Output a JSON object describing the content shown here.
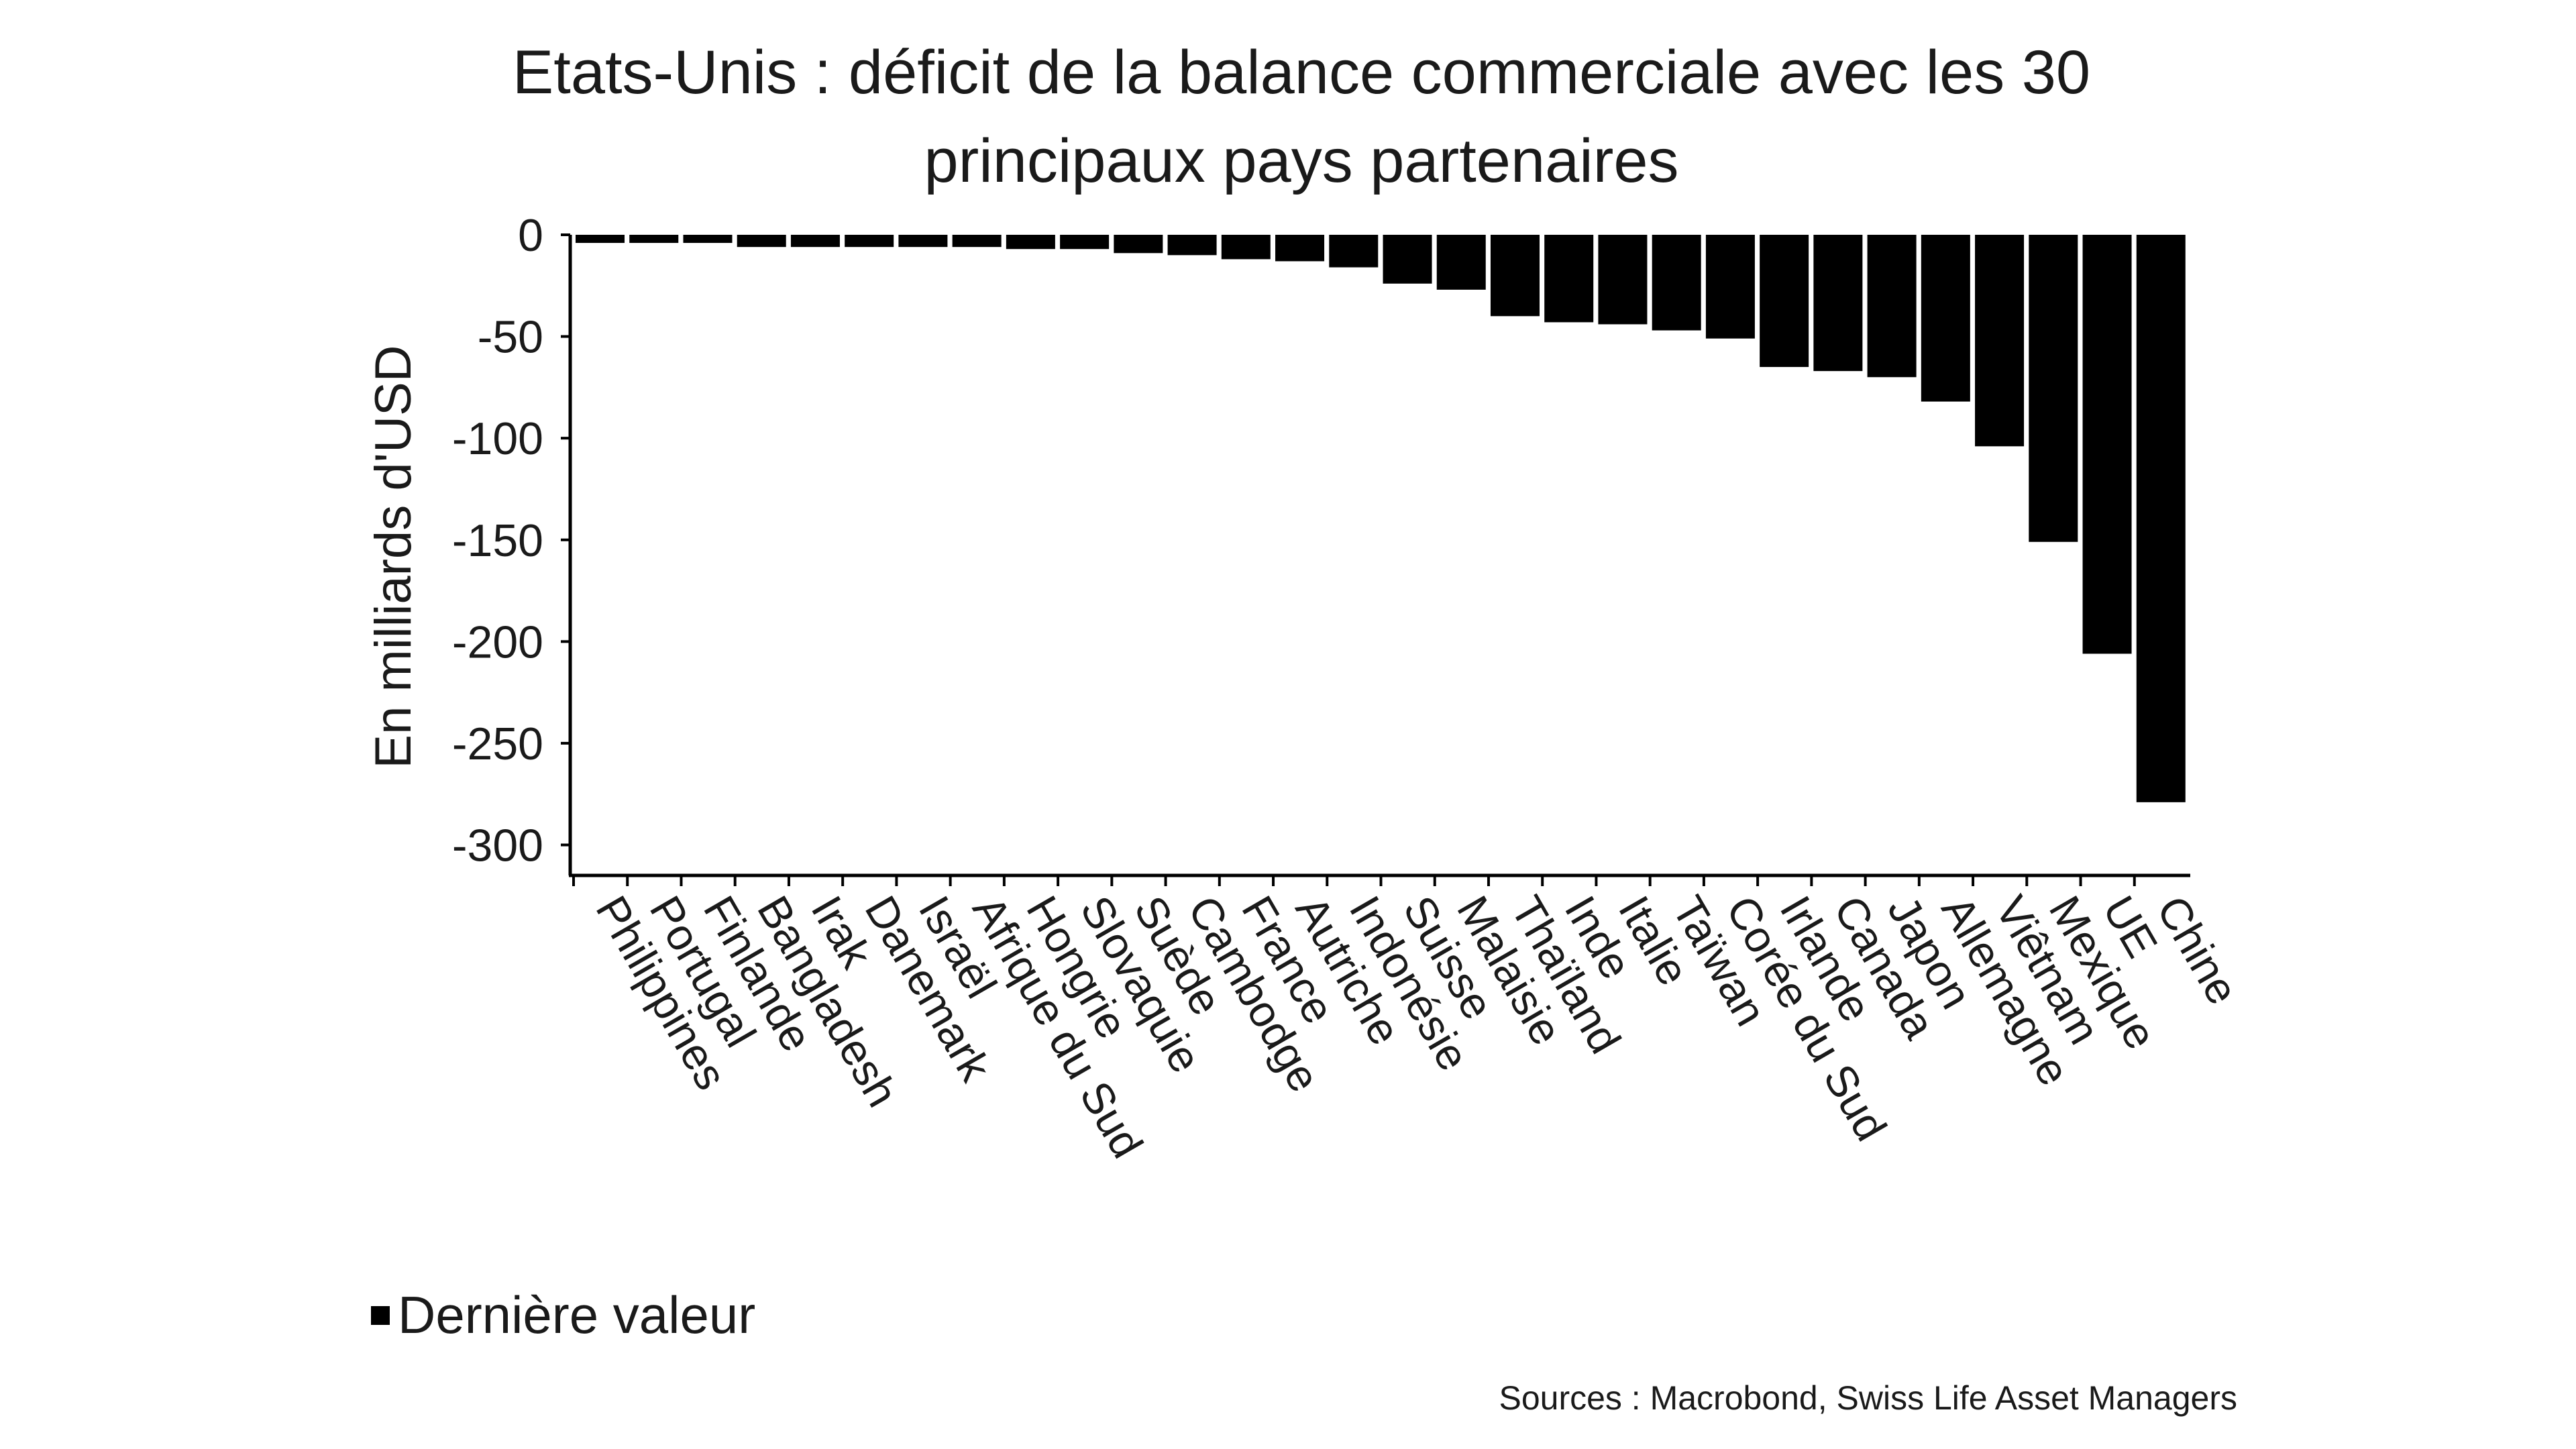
{
  "chart_data": {
    "type": "bar",
    "title_lines": [
      "Etats-Unis : déficit de la balance commerciale avec les 30",
      "principaux pays partenaires"
    ],
    "xlabel": "",
    "ylabel": "En milliards d'USD",
    "ylim": [
      -315,
      0
    ],
    "yticks": [
      0,
      -50,
      -100,
      -150,
      -200,
      -250,
      -300
    ],
    "grid": false,
    "legend_position": "bottom-left",
    "categories": [
      "Philippines",
      "Portugal",
      "Finlande",
      "Bangladesh",
      "Irak",
      "Danemark",
      "Israël",
      "Afrique du Sud",
      "Hongrie",
      "Slovaquie",
      "Suède",
      "Cambodge",
      "France",
      "Autriche",
      "Indonésie",
      "Suisse",
      "Malaisie",
      "Thaïland",
      "Inde",
      "Italie",
      "Taïwan",
      "Corée du Sud",
      "Irlande",
      "Canada",
      "Japon",
      "Allemagne",
      "Viêtnam",
      "Mexique",
      "UE",
      "Chine"
    ],
    "series": [
      {
        "name": "Dernière valeur",
        "color": "#000000",
        "values": [
          -4,
          -4,
          -4,
          -6,
          -6,
          -6,
          -6,
          -6,
          -7,
          -7,
          -9,
          -10,
          -12,
          -13,
          -16,
          -24,
          -27,
          -40,
          -43,
          -44,
          -47,
          -51,
          -65,
          -67,
          -70,
          -82,
          -104,
          -151,
          -206,
          -279
        ]
      }
    ]
  },
  "legend": {
    "label": "Dernière valeur"
  },
  "source": "Sources : Macrobond, Swiss Life Asset Managers"
}
